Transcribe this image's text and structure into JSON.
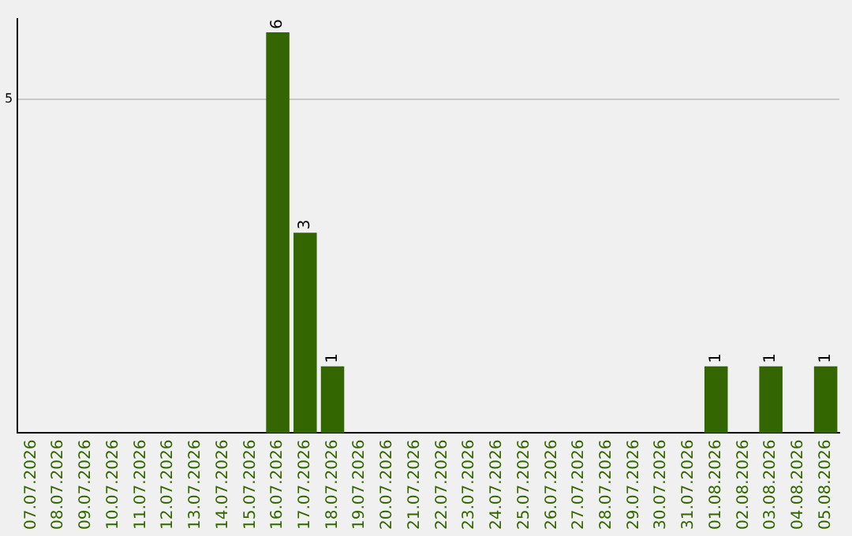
{
  "chart_data": {
    "type": "bar",
    "categories": [
      "07.07.2026",
      "08.07.2026",
      "09.07.2026",
      "10.07.2026",
      "11.07.2026",
      "12.07.2026",
      "13.07.2026",
      "14.07.2026",
      "15.07.2026",
      "16.07.2026",
      "17.07.2026",
      "18.07.2026",
      "19.07.2026",
      "20.07.2026",
      "21.07.2026",
      "22.07.2026",
      "23.07.2026",
      "24.07.2026",
      "25.07.2026",
      "26.07.2026",
      "27.07.2026",
      "28.07.2026",
      "29.07.2026",
      "30.07.2026",
      "31.07.2026",
      "01.08.2026",
      "02.08.2026",
      "03.08.2026",
      "04.08.2026",
      "05.08.2026"
    ],
    "values": [
      0,
      0,
      0,
      0,
      0,
      0,
      0,
      0,
      0,
      6,
      3,
      1,
      0,
      0,
      0,
      0,
      0,
      0,
      0,
      0,
      0,
      0,
      0,
      0,
      0,
      1,
      0,
      1,
      0,
      1
    ],
    "value_labels": [
      null,
      null,
      null,
      null,
      null,
      null,
      null,
      null,
      null,
      "6",
      "3",
      "1",
      null,
      null,
      null,
      null,
      null,
      null,
      null,
      null,
      null,
      null,
      null,
      null,
      null,
      "1",
      null,
      "1",
      null,
      "1"
    ],
    "color": "#336600",
    "ylim": [
      0,
      6.2
    ],
    "yticks": [
      5
    ],
    "grid": "y"
  }
}
